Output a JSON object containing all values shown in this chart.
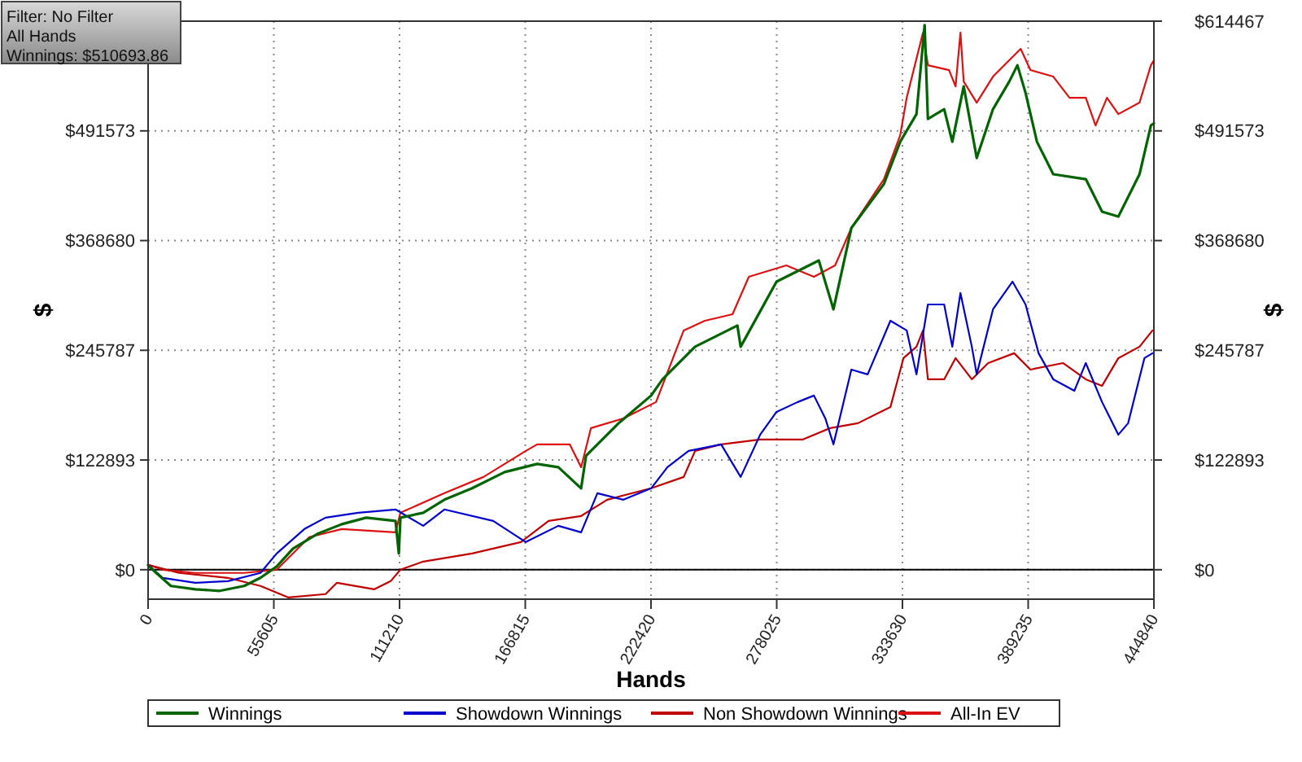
{
  "chart_data": {
    "type": "line",
    "xlabel": "Hands",
    "ylabel": "$",
    "y2label": "$",
    "annotations": [
      "Filter: No Filter",
      "All Hands",
      "Winnings: $510693.86"
    ],
    "xlim": [
      0,
      444840
    ],
    "xticks": [
      0,
      55605,
      111210,
      166815,
      222420,
      278025,
      333630,
      389235,
      444840
    ],
    "ylim": [
      -33000,
      614467
    ],
    "yticks": [
      {
        "value": 0,
        "label": "$0"
      },
      {
        "value": 122893,
        "label": "$122893"
      },
      {
        "value": 245787,
        "label": "$245787"
      },
      {
        "value": 368680,
        "label": "$368680"
      },
      {
        "value": 491573,
        "label": "$491573"
      },
      {
        "value": 614467,
        "label": null
      }
    ],
    "y2lim": [
      -33000,
      614467
    ],
    "y2ticks": [
      {
        "value": 0,
        "label": "$0"
      },
      {
        "value": 122893,
        "label": "$122893"
      },
      {
        "value": 245787,
        "label": "$245787"
      },
      {
        "value": 368680,
        "label": "$368680"
      },
      {
        "value": 491573,
        "label": "$491573"
      },
      {
        "value": 614467,
        "label": "$614467"
      }
    ],
    "grid": true,
    "legend": "bottom",
    "marker": "none",
    "line_style": "solid",
    "ref_lines": [
      {
        "axis": "y",
        "value": 0,
        "color": "#000000"
      }
    ],
    "series": [
      {
        "name": "All-In EV",
        "color": "#dd1111",
        "x": [
          0,
          6480,
          20880,
          42480,
          56880,
          71280,
          85680,
          109440,
          111600,
          131040,
          148320,
          167040,
          172080,
          186480,
          191520,
          195840,
          210240,
          224640,
          236880,
          246240,
          258480,
          265680,
          282240,
          294480,
          303840,
          311040,
          325440,
          332640,
          335520,
          342720,
          344880,
          354240,
          357120,
          359280,
          360720,
          366480,
          373680,
          385920,
          390240,
          400320,
          407520,
          414720,
          419040,
          424080,
          429120,
          438480,
          443520,
          444840
        ],
        "values": [
          5500,
          0,
          -3600,
          -3600,
          0,
          36500,
          45600,
          41900,
          63800,
          85700,
          103900,
          133100,
          140400,
          140400,
          114800,
          158600,
          169500,
          187800,
          268000,
          278900,
          286200,
          328100,
          340900,
          328100,
          340900,
          382800,
          437500,
          486700,
          528700,
          601600,
          565100,
          559700,
          541400,
          601600,
          546900,
          523200,
          552400,
          583400,
          559700,
          552400,
          528700,
          528700,
          497700,
          528700,
          510400,
          523200,
          565100,
          570600
        ]
      },
      {
        "name": "Non Showdown Winnings",
        "color": "#c00000",
        "x": [
          0,
          13680,
          35280,
          49680,
          61920,
          78480,
          83520,
          100080,
          107280,
          111600,
          121680,
          143280,
          164880,
          177120,
          191520,
          203040,
          222480,
          236880,
          241920,
          253440,
          270720,
          289440,
          301680,
          313920,
          328320,
          334080,
          339840,
          342720,
          344880,
          352080,
          357120,
          364320,
          371520,
          383040,
          390240,
          404640,
          414720,
          421920,
          429120,
          438480,
          444240
        ],
        "values": [
          5500,
          -3600,
          -9100,
          -18200,
          -31000,
          -27300,
          -14600,
          -21900,
          -12800,
          0,
          9100,
          18200,
          31000,
          54700,
          60200,
          78400,
          91200,
          103900,
          133100,
          140400,
          145800,
          145800,
          158600,
          164100,
          182300,
          237000,
          249800,
          268000,
          213300,
          213300,
          237000,
          213300,
          231500,
          242500,
          224200,
          231500,
          213300,
          206000,
          237000,
          249800,
          268000
        ]
      },
      {
        "name": "Showdown Winnings",
        "color": "#0000cc",
        "x": [
          0,
          6480,
          20880,
          35280,
          49680,
          56880,
          69120,
          78480,
          92880,
          109440,
          121680,
          131040,
          152640,
          167040,
          181440,
          191520,
          198720,
          210240,
          222480,
          229680,
          239040,
          253440,
          262080,
          270720,
          277920,
          287280,
          294480,
          299520,
          303120,
          311040,
          318240,
          328320,
          335520,
          339840,
          344880,
          352080,
          355680,
          359280,
          364320,
          366480,
          373680,
          382320,
          388080,
          393840,
          400320,
          409680,
          414720,
          421920,
          429120,
          433440,
          440640,
          444240
        ],
        "values": [
          5500,
          -9100,
          -14600,
          -12800,
          -3600,
          18200,
          45600,
          58300,
          63800,
          67500,
          49200,
          67500,
          54700,
          31000,
          49200,
          41900,
          85700,
          78400,
          91200,
          114800,
          133100,
          140400,
          103900,
          151300,
          176800,
          187800,
          195100,
          169500,
          140400,
          224200,
          218800,
          278900,
          268000,
          218800,
          297100,
          297100,
          249800,
          309900,
          249800,
          218800,
          291700,
          322700,
          297100,
          242500,
          213300,
          200500,
          231500,
          187800,
          151300,
          164100,
          237000,
          242500
        ]
      },
      {
        "name": "Winnings",
        "color": "#006400",
        "x": [
          0,
          3600,
          10080,
          20880,
          31680,
          42480,
          49680,
          56880,
          64080,
          74880,
          85680,
          96480,
          109440,
          110880,
          111600,
          121680,
          131040,
          143280,
          157680,
          172080,
          181440,
          191520,
          193680,
          208080,
          222480,
          227520,
          236880,
          241920,
          260640,
          262080,
          277920,
          296640,
          303120,
          311040,
          325440,
          332640,
          339840,
          343440,
          344880,
          352080,
          355680,
          360720,
          366480,
          373680,
          380880,
          384480,
          388080,
          393120,
          400320,
          414720,
          421920,
          429120,
          438480,
          443520,
          444840
        ],
        "values": [
          5000,
          -3600,
          -18200,
          -21900,
          -23700,
          -18200,
          -9100,
          3600,
          23700,
          40100,
          51000,
          58300,
          54700,
          18200,
          58300,
          63800,
          78400,
          91200,
          109400,
          118500,
          114800,
          91200,
          127600,
          164100,
          195100,
          213300,
          237000,
          249800,
          273500,
          249800,
          322700,
          346400,
          291700,
          382800,
          432100,
          479400,
          510400,
          610000,
          505000,
          515900,
          479400,
          541400,
          461200,
          515900,
          546900,
          565100,
          534100,
          479400,
          443000,
          437500,
          401100,
          395600,
          443000,
          497700,
          500000
        ]
      }
    ]
  }
}
